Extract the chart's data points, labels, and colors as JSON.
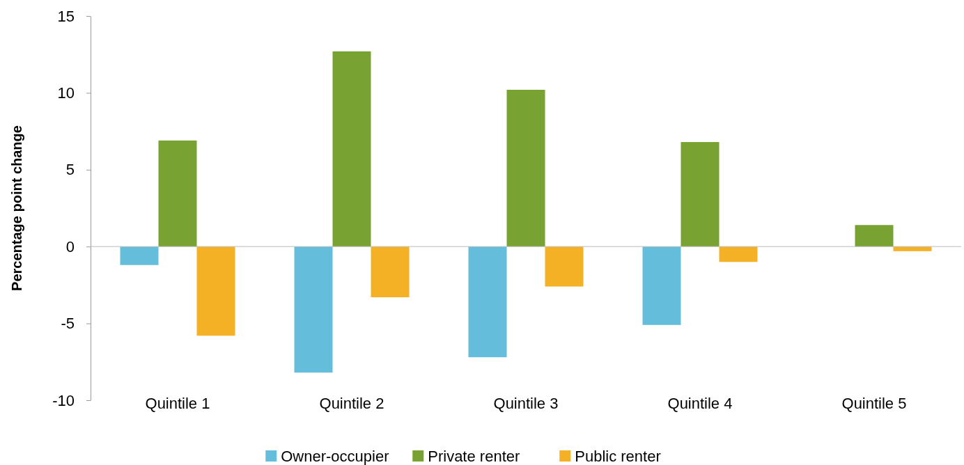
{
  "chart_data": {
    "type": "bar",
    "ylabel": "Percentage point change",
    "categories": [
      "Quintile 1",
      "Quintile 2",
      "Quintile 3",
      "Quintile 4",
      "Quintile 5"
    ],
    "series": [
      {
        "name": "Owner-occupier",
        "color": "#65bddc",
        "values": [
          -1.2,
          -8.2,
          -7.2,
          -5.1,
          0
        ]
      },
      {
        "name": "Private renter",
        "color": "#78a232",
        "values": [
          6.9,
          12.7,
          10.2,
          6.8,
          1.4
        ]
      },
      {
        "name": "Public renter",
        "color": "#f4b126",
        "values": [
          -5.8,
          -3.3,
          -2.6,
          -1.0,
          -0.3
        ]
      }
    ],
    "ylim": [
      -10,
      15
    ],
    "yticks": [
      -10,
      -5,
      0,
      5,
      10,
      15
    ],
    "ref_lines": [
      {
        "axis": "y",
        "value": 0,
        "color": "#bbbbbb"
      }
    ],
    "legend": "bottom"
  }
}
